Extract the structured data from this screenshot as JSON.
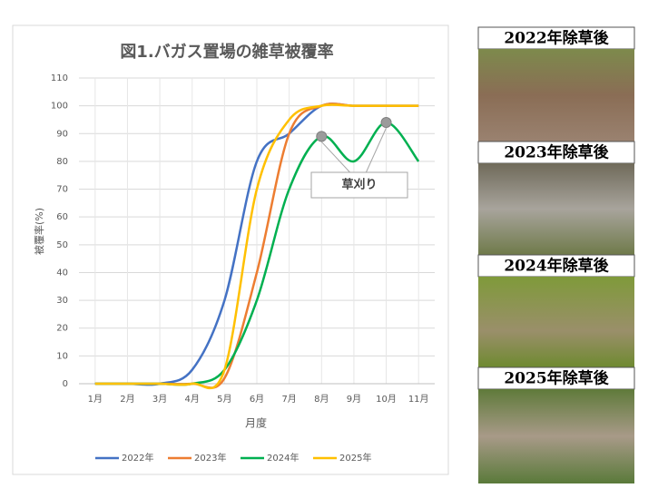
{
  "chart_data": {
    "type": "line",
    "title": "図1.バガス置場の雑草被覆率",
    "x_label": "月度",
    "y_label": "被覆率(%)",
    "categories": [
      "1月",
      "2月",
      "3月",
      "4月",
      "5月",
      "6月",
      "7月",
      "8月",
      "9月",
      "10月",
      "11月"
    ],
    "series": [
      {
        "name": "2022年",
        "color": "#4472c4",
        "values": [
          0,
          0,
          0,
          5,
          30,
          80,
          90,
          100,
          100,
          100,
          100
        ]
      },
      {
        "name": "2023年",
        "color": "#ed7d31",
        "values": [
          0,
          0,
          0,
          0,
          2,
          40,
          90,
          100,
          100,
          100,
          100
        ]
      },
      {
        "name": "2024年",
        "color": "#00b050",
        "values": [
          0,
          0,
          0,
          0,
          5,
          30,
          70,
          89,
          80,
          94,
          80
        ]
      },
      {
        "name": "2025年",
        "color": "#ffc000",
        "values": [
          0,
          0,
          0,
          0,
          5,
          70,
          95,
          100,
          100,
          100,
          100
        ]
      }
    ],
    "ylim": [
      0,
      110
    ],
    "yticks": [
      0,
      10,
      20,
      30,
      40,
      50,
      60,
      70,
      80,
      90,
      100,
      110
    ],
    "grid": true,
    "legend": "bottom",
    "annotation": {
      "text": "草刈り",
      "series": 2,
      "points": [
        7,
        9
      ]
    }
  },
  "photos": [
    "2022年除草後",
    "2023年除草後",
    "2024年除草後",
    "2025年除草後"
  ]
}
